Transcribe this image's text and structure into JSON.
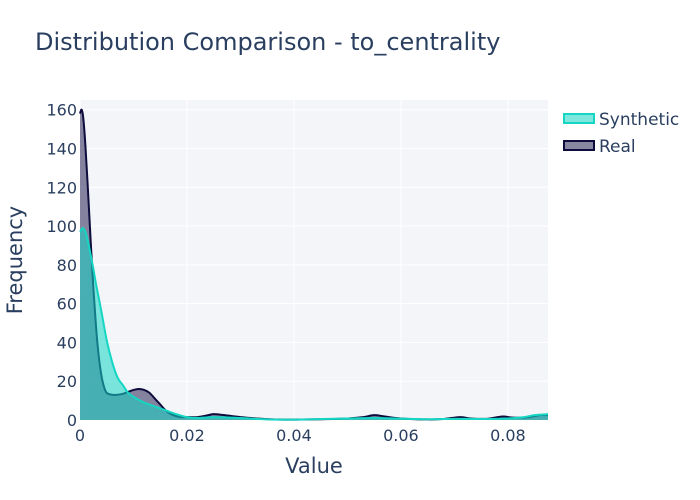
{
  "chart_data": {
    "type": "area",
    "title": "Distribution Comparison - to_centrality",
    "xlabel": "Value",
    "ylabel": "Frequency",
    "xlim": [
      0,
      0.0875
    ],
    "ylim": [
      0,
      165
    ],
    "xticks": [
      0,
      0.02,
      0.04,
      0.06,
      0.08
    ],
    "xtick_labels": [
      "0",
      "0.02",
      "0.04",
      "0.06",
      "0.08"
    ],
    "yticks": [
      0,
      20,
      40,
      60,
      80,
      100,
      120,
      140,
      160
    ],
    "ytick_labels": [
      "0",
      "20",
      "40",
      "60",
      "80",
      "100",
      "120",
      "140",
      "160"
    ],
    "grid": true,
    "legend_position": "top-right",
    "series": [
      {
        "name": "Synthetic",
        "line_color": "#14d6c3",
        "fill_color": "rgba(20,214,195,0.55)",
        "x": [
          0,
          0.0005,
          0.001,
          0.0015,
          0.002,
          0.0025,
          0.003,
          0.004,
          0.005,
          0.006,
          0.007,
          0.008,
          0.009,
          0.01,
          0.012,
          0.014,
          0.016,
          0.018,
          0.02,
          0.022,
          0.025,
          0.03,
          0.035,
          0.04,
          0.045,
          0.05,
          0.055,
          0.06,
          0.065,
          0.07,
          0.075,
          0.08,
          0.083,
          0.085,
          0.0875
        ],
        "y": [
          97,
          99,
          97,
          92,
          85,
          78,
          70,
          56,
          41,
          30,
          22,
          18,
          14,
          12,
          9,
          7,
          5,
          3,
          1.5,
          1,
          1.5,
          1,
          0.3,
          0.2,
          0.5,
          0.8,
          1,
          0.7,
          0.4,
          0.6,
          0.5,
          0.8,
          1.5,
          2.5,
          3
        ]
      },
      {
        "name": "Real",
        "line_color": "#0d0c3d",
        "fill_color": "rgba(40,35,85,0.55)",
        "x": [
          0,
          0.0003,
          0.0006,
          0.001,
          0.0015,
          0.002,
          0.0025,
          0.003,
          0.0035,
          0.004,
          0.0045,
          0.005,
          0.006,
          0.007,
          0.008,
          0.009,
          0.01,
          0.011,
          0.012,
          0.013,
          0.014,
          0.015,
          0.016,
          0.017,
          0.018,
          0.019,
          0.02,
          0.022,
          0.024,
          0.025,
          0.027,
          0.03,
          0.033,
          0.036,
          0.04,
          0.045,
          0.05,
          0.053,
          0.055,
          0.057,
          0.06,
          0.065,
          0.068,
          0.071,
          0.073,
          0.076,
          0.079,
          0.081,
          0.084,
          0.086,
          0.0875
        ],
        "y": [
          158,
          160,
          156,
          142,
          118,
          92,
          68,
          48,
          33,
          23,
          17,
          14,
          13,
          13,
          13.5,
          14.5,
          15.5,
          16,
          15.5,
          14,
          11,
          8,
          5,
          3,
          2,
          1.5,
          1.5,
          1.5,
          2.5,
          3,
          2.5,
          1.5,
          0.8,
          0.3,
          0.2,
          0.4,
          0.8,
          1.5,
          2.5,
          1.8,
          0.8,
          0.3,
          0.5,
          1.5,
          0.8,
          0.6,
          1.8,
          1.2,
          1.5,
          2.5,
          2.5
        ]
      }
    ]
  }
}
